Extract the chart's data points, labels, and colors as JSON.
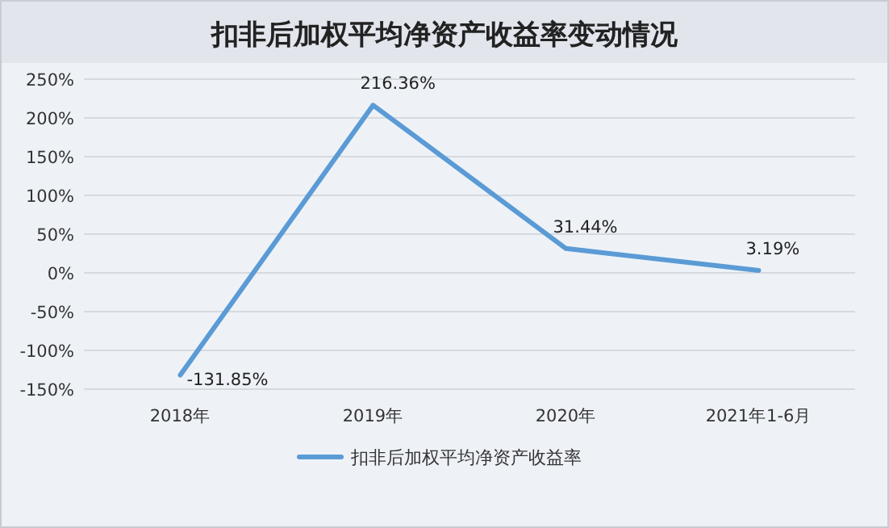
{
  "chart_data": {
    "type": "line",
    "title": "扣非后加权平均净资产收益率变动情况",
    "categories": [
      "2018年",
      "2019年",
      "2020年",
      "2021年1-6月"
    ],
    "series": [
      {
        "name": "扣非后加权平均净资产收益率",
        "color": "#5b9bd5",
        "values": [
          -131.85,
          216.36,
          31.44,
          3.19
        ],
        "value_labels": [
          "-131.85%",
          "216.36%",
          "31.44%",
          "3.19%"
        ]
      }
    ],
    "ylim": [
      -150,
      250
    ],
    "yticks": [
      {
        "value": -150,
        "label": "-150%"
      },
      {
        "value": -100,
        "label": "-100%"
      },
      {
        "value": -50,
        "label": "-50%"
      },
      {
        "value": 0,
        "label": "0%"
      },
      {
        "value": 50,
        "label": "50%"
      },
      {
        "value": 100,
        "label": "100%"
      },
      {
        "value": 150,
        "label": "150%"
      },
      {
        "value": 200,
        "label": "200%"
      },
      {
        "value": 250,
        "label": "250%"
      }
    ],
    "grid": "y",
    "legend": "bottom",
    "marker": "none",
    "line_style": "solid"
  }
}
